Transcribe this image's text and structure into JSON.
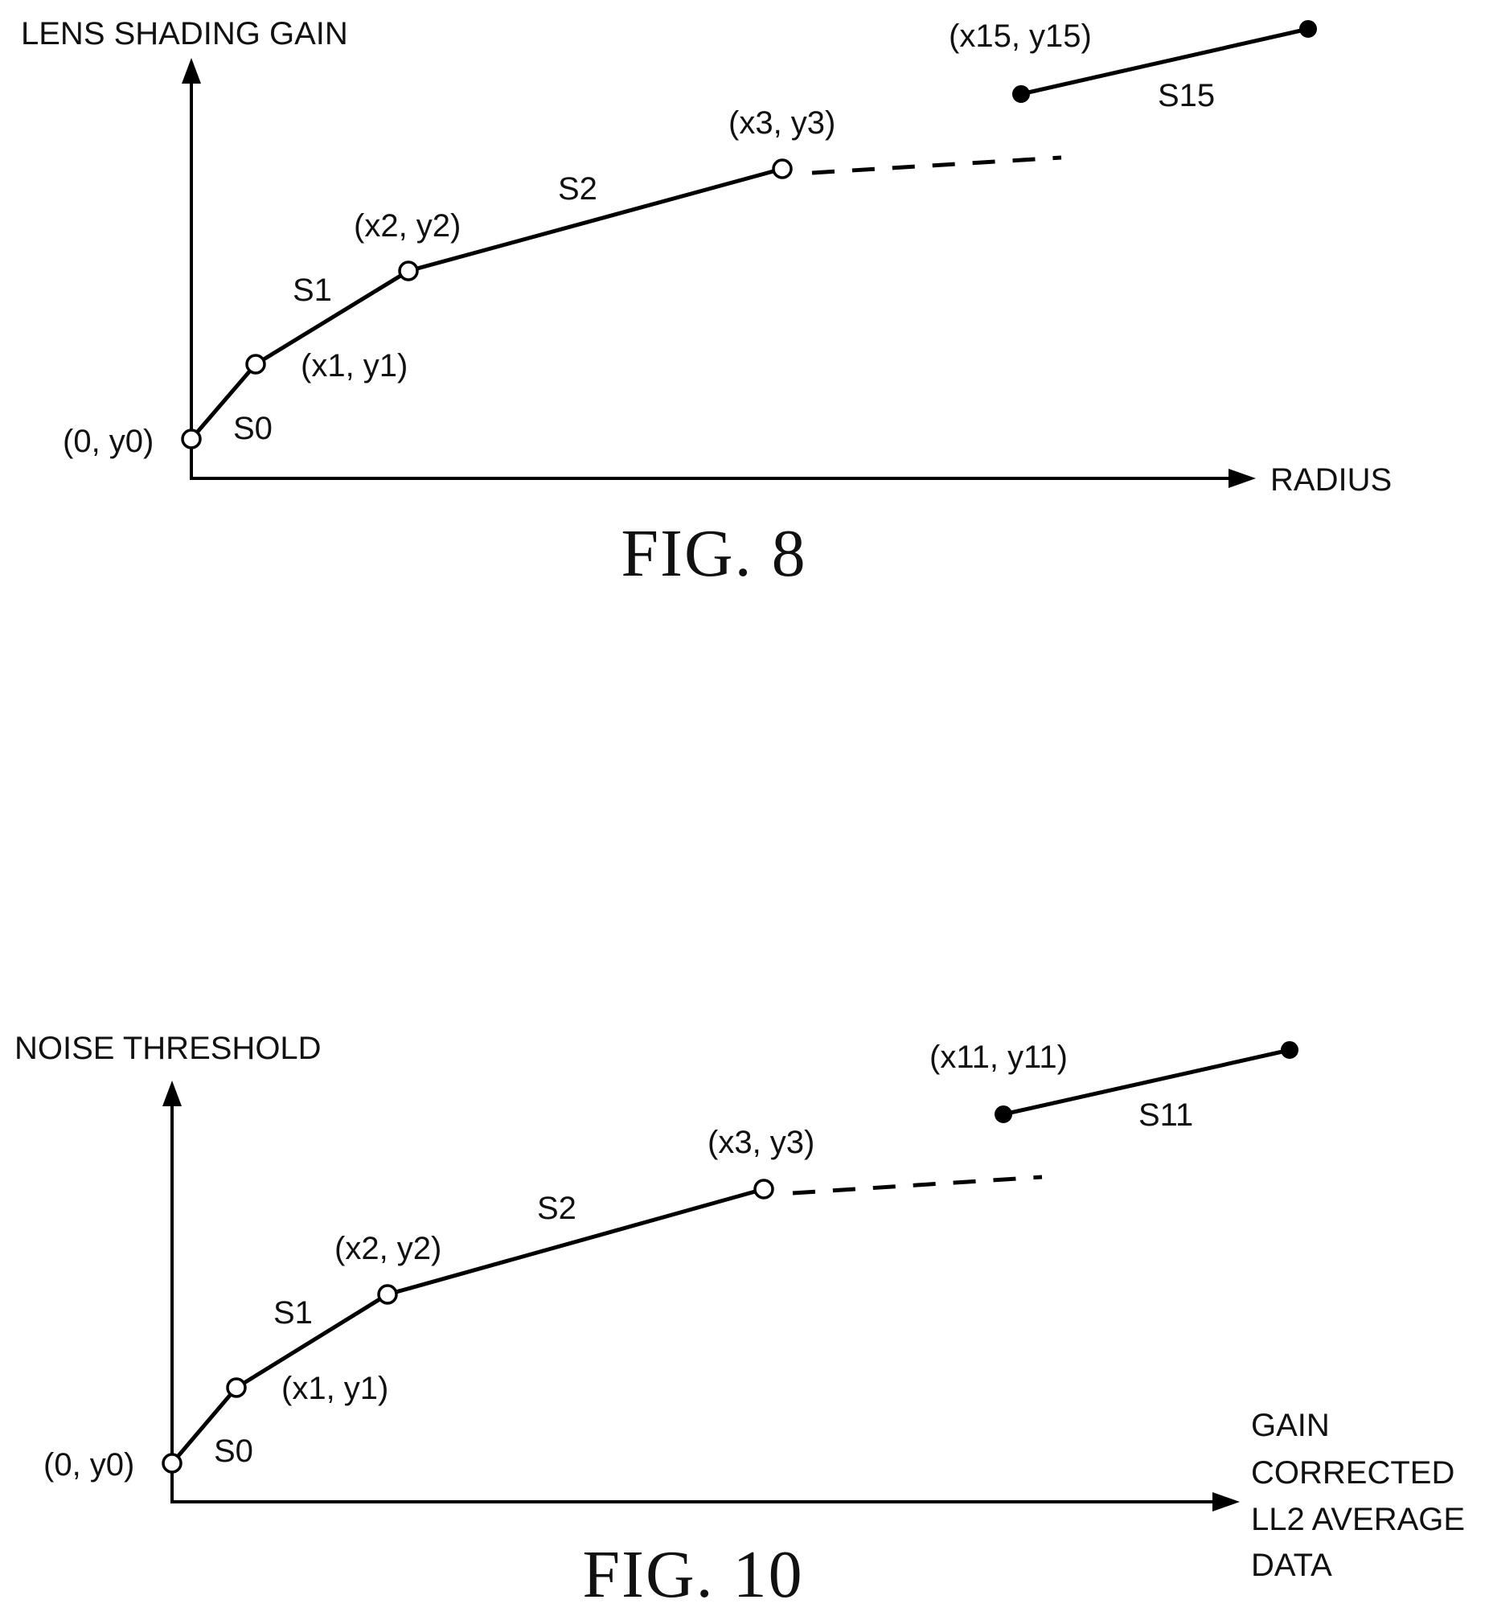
{
  "fig8": {
    "caption": "FIG. 8",
    "y_axis_label": "LENS SHADING GAIN",
    "x_axis_label": "RADIUS",
    "points": {
      "p0": "(0, y0)",
      "p1": "(x1, y1)",
      "p2": "(x2, y2)",
      "p3": "(x3, y3)",
      "plast": "(x15, y15)"
    },
    "segments": {
      "s0": "S0",
      "s1": "S1",
      "s2": "S2",
      "slast": "S15"
    }
  },
  "fig10": {
    "caption": "FIG. 10",
    "y_axis_label": "NOISE THRESHOLD",
    "x_axis_label_lines": [
      "GAIN",
      "CORRECTED",
      "LL2 AVERAGE",
      "DATA"
    ],
    "points": {
      "p0": "(0, y0)",
      "p1": "(x1, y1)",
      "p2": "(x2, y2)",
      "p3": "(x3, y3)",
      "plast": "(x11, y11)"
    },
    "segments": {
      "s0": "S0",
      "s1": "S1",
      "s2": "S2",
      "slast": "S11"
    }
  }
}
